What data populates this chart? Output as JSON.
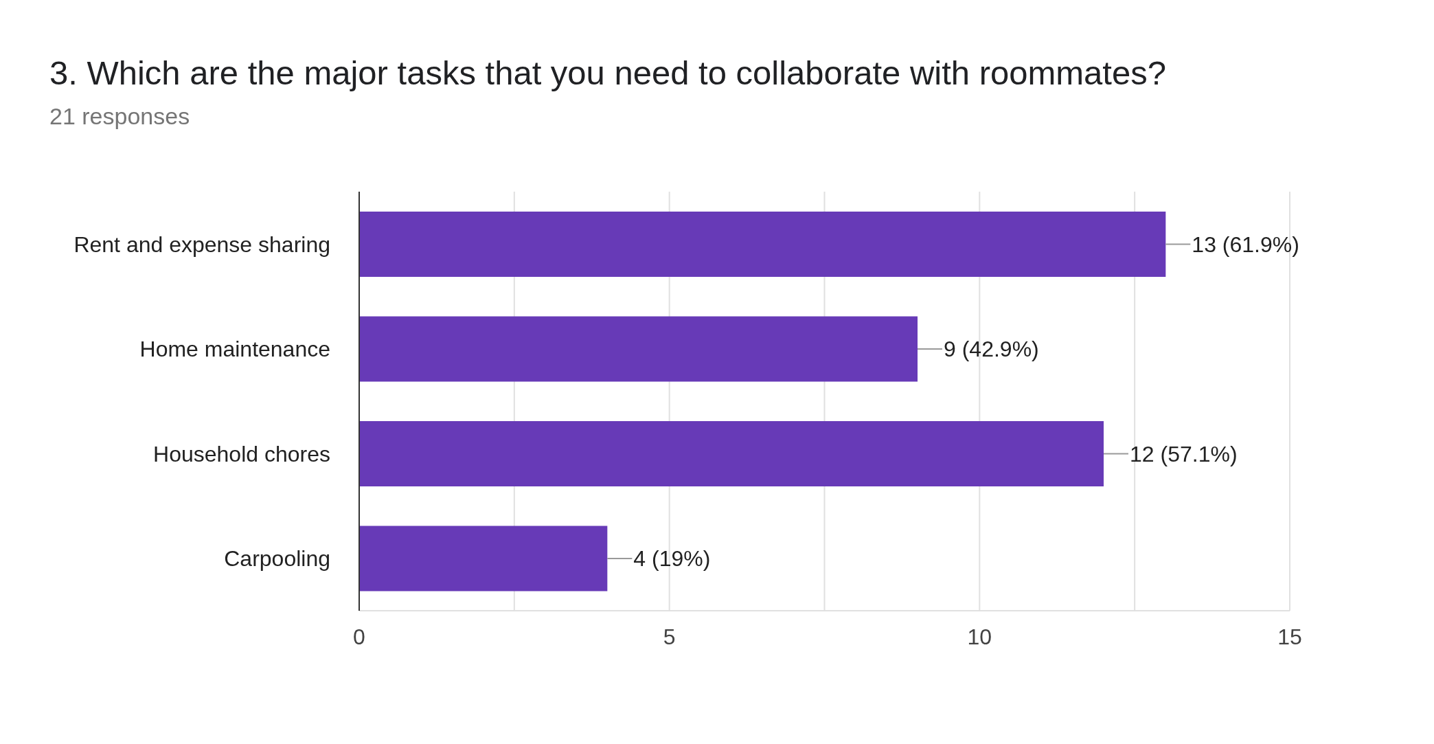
{
  "chart_data": {
    "type": "bar",
    "orientation": "horizontal",
    "title": "3. Which are the major tasks that you need to collaborate with roommates?",
    "subtitle": "21 responses",
    "categories": [
      "Rent and expense sharing",
      "Home maintenance",
      "Household chores",
      "Carpooling"
    ],
    "values": [
      13,
      9,
      12,
      4
    ],
    "color": "#673ab7",
    "value_labels": [
      "13 (61.9%)",
      "9 (42.9%)",
      "12 (57.1%)",
      "4 (19%)"
    ],
    "xlim": [
      0,
      15
    ],
    "xticks": [
      0,
      {
        "value": 2.5,
        "label": null
      },
      5,
      {
        "value": 7.5,
        "label": null
      },
      10,
      {
        "value": 12.5,
        "label": null
      },
      15
    ],
    "grid": "x",
    "legend": false
  }
}
